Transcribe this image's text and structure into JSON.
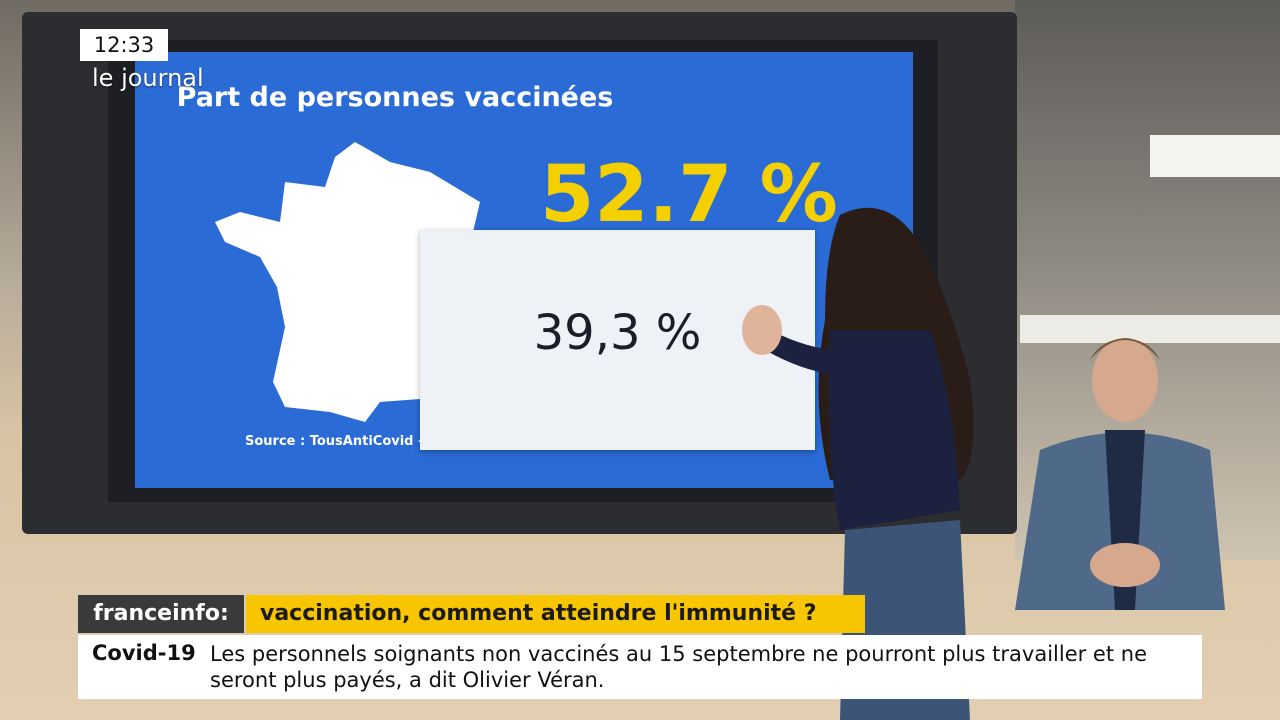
{
  "overlay": {
    "clock": "12:33",
    "show": "le journal"
  },
  "screen": {
    "title": "Part de personnes vaccinées",
    "big_value": "52.7 %",
    "card_value": "39,3 %",
    "source": "Source : TousAntiCovid –"
  },
  "banner": {
    "brand": "franceinfo:",
    "headline": "vaccination, comment atteindre l'immunité ?"
  },
  "ticker": {
    "tag": "Covid-19",
    "text": "Les personnels soignants non vaccinés au 15 septembre ne pourront plus travailler et ne seront plus payés, a dit Olivier Véran."
  }
}
